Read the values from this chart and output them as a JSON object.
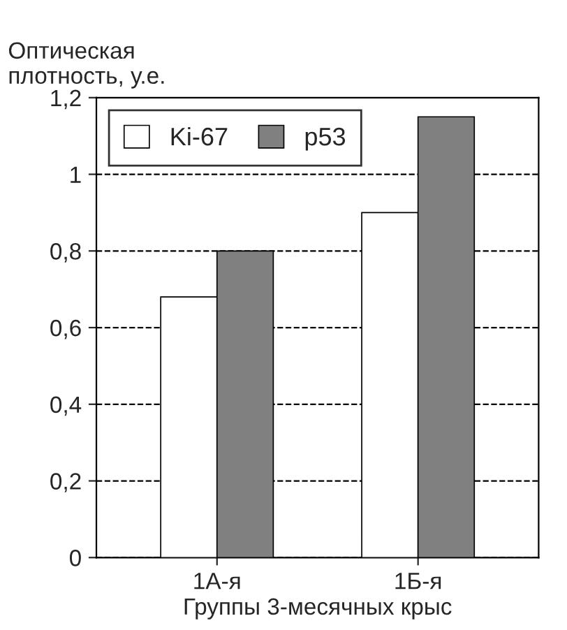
{
  "chart_data": {
    "type": "bar",
    "xlabel": "Группы 3-месячных крыс",
    "ylabel": "Оптическая\nплотность, у.е.",
    "categories": [
      "1А-я",
      "1Б-я"
    ],
    "series": [
      {
        "name": "Ki-67",
        "color": "#ffffff",
        "values": [
          0.68,
          0.9
        ]
      },
      {
        "name": "p53",
        "color": "#808080",
        "values": [
          0.8,
          1.15
        ]
      }
    ],
    "ylim": [
      0,
      1.2
    ],
    "yticks": [
      0,
      {
        "value": 0.2,
        "label": "0,2"
      },
      {
        "value": 0.4,
        "label": "0,4"
      },
      {
        "value": 0.6,
        "label": "0,6"
      },
      {
        "value": 0.8,
        "label": "0,8"
      },
      1,
      {
        "value": 1.2,
        "label": "1,2"
      }
    ],
    "grid": "y",
    "legend": "top left"
  }
}
